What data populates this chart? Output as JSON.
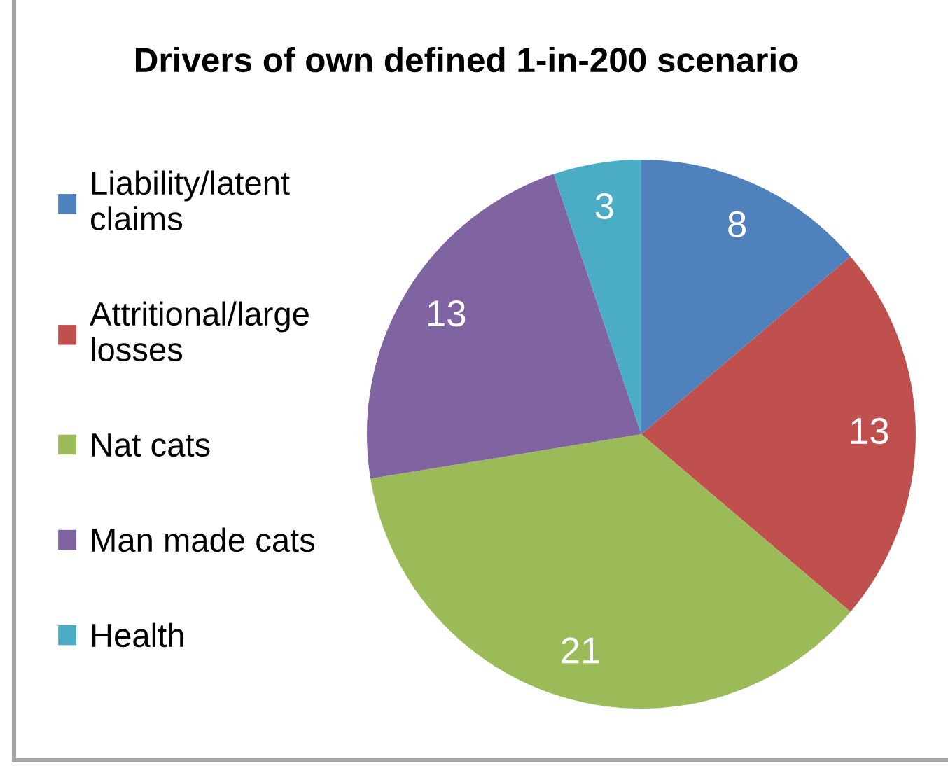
{
  "chart_data": {
    "type": "pie",
    "title": "Drivers of own defined 1-in-200 scenario",
    "categories": [
      "Liability/latent claims",
      "Attritional/large losses",
      "Nat cats",
      "Man made cats",
      "Health"
    ],
    "values": [
      8,
      13,
      21,
      13,
      3
    ],
    "colors": [
      "#4f81bd",
      "#c0504d",
      "#9bbb59",
      "#8064a2",
      "#4bacc6"
    ],
    "data_labels": true,
    "legend": "left"
  }
}
